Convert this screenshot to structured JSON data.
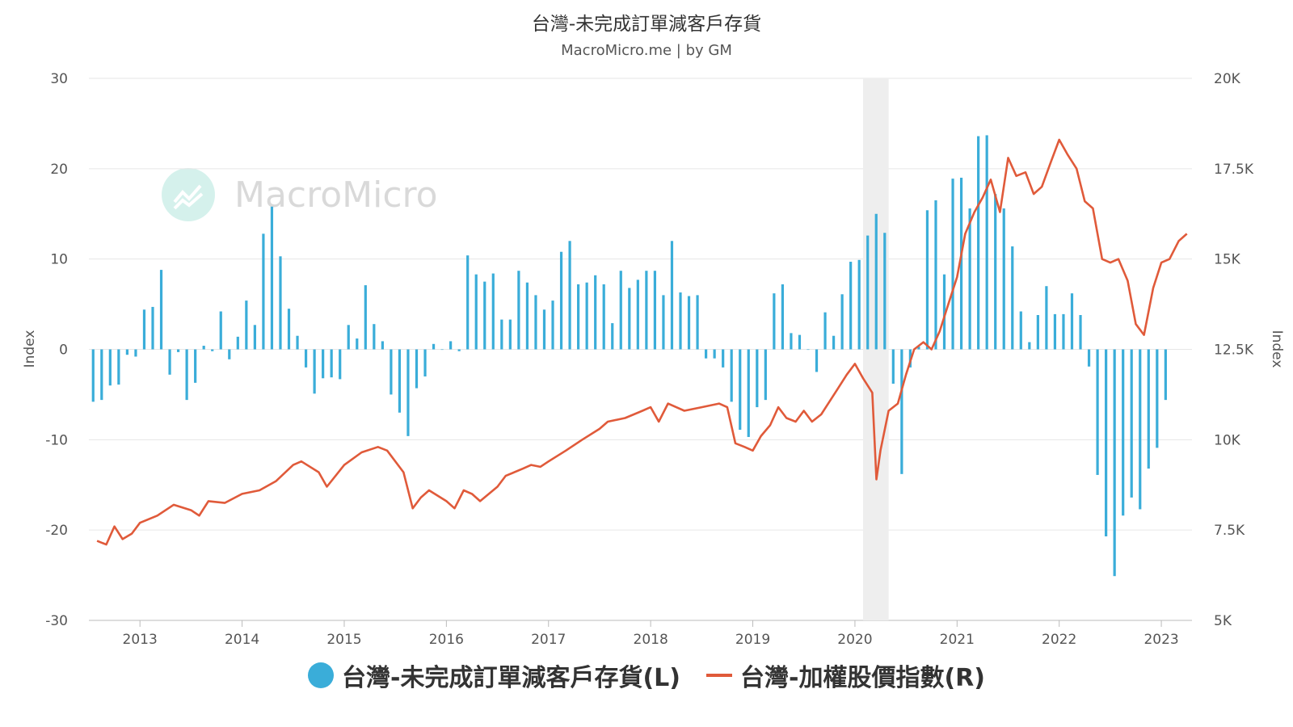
{
  "chart_data": {
    "type": "bar+line",
    "title": "台灣-未完成訂單減客戶存貨",
    "subtitle": "MacroMicro.me | by GM",
    "watermark": "MacroMicro",
    "ylabel_left": "Index",
    "ylabel_right": "Index",
    "ylim_left": [
      -30,
      30
    ],
    "ylim_right": [
      5000,
      20000
    ],
    "left_ticks": [
      "30",
      "20",
      "10",
      "0",
      "-10",
      "-20",
      "-30"
    ],
    "right_ticks": [
      "20K",
      "17.5K",
      "15K",
      "12.5K",
      "10K",
      "7.5K",
      "5K"
    ],
    "x_ticks": [
      "2013",
      "2014",
      "2015",
      "2016",
      "2017",
      "2018",
      "2019",
      "2020",
      "2021",
      "2022",
      "2023"
    ],
    "x_range": [
      2012.5,
      2023.3
    ],
    "recession_band": [
      2020.08,
      2020.33
    ],
    "bar_series": {
      "name": "台灣-未完成訂單減客戶存貨(L)",
      "color": "#3aadd9",
      "start": [
        2012,
        7
      ],
      "values": [
        -5.8,
        -5.6,
        -4.0,
        -3.9,
        -0.6,
        -0.8,
        4.4,
        4.7,
        8.8,
        -2.8,
        -0.3,
        -5.6,
        -3.7,
        0.4,
        -0.2,
        4.2,
        -1.1,
        1.4,
        5.4,
        2.7,
        12.8,
        15.8,
        10.3,
        4.5,
        1.5,
        -2.0,
        -4.9,
        -3.2,
        -3.1,
        -3.3,
        2.7,
        1.2,
        7.1,
        2.8,
        0.9,
        -5.0,
        -7.0,
        -9.6,
        -4.3,
        -3.0,
        0.6,
        0.0,
        0.9,
        -0.2,
        10.4,
        8.3,
        7.5,
        8.4,
        3.3,
        3.3,
        8.7,
        7.4,
        6.0,
        4.4,
        5.4,
        10.8,
        12.0,
        7.2,
        7.4,
        8.2,
        7.2,
        2.9,
        8.7,
        6.8,
        7.7,
        8.7,
        8.7,
        6.0,
        12.0,
        6.3,
        5.9,
        6.0,
        -1.0,
        -1.0,
        -2.0,
        -5.8,
        -8.9,
        -9.7,
        -6.4,
        -5.6,
        6.2,
        7.2,
        1.8,
        1.6,
        0.0,
        -2.5,
        4.1,
        1.5,
        6.1,
        9.7,
        9.9,
        12.6,
        15.0,
        12.9,
        -3.8,
        -13.8,
        -2.0,
        0.3,
        15.4,
        16.5,
        8.3,
        18.9,
        19.0,
        15.6,
        23.6,
        23.7,
        17.2,
        15.6,
        11.4,
        4.2,
        0.8,
        3.8,
        7.0,
        3.9,
        3.9,
        6.2,
        3.8,
        -1.9,
        -13.9,
        -20.7,
        -25.1,
        -18.4,
        -16.4,
        -17.7,
        -13.2,
        -10.9,
        -5.6
      ]
    },
    "line_series": {
      "name": "台灣-加權股價指數(R)",
      "color": "#e05a3a",
      "points": [
        [
          2012.58,
          7200
        ],
        [
          2012.67,
          7100
        ],
        [
          2012.75,
          7600
        ],
        [
          2012.83,
          7250
        ],
        [
          2012.92,
          7400
        ],
        [
          2013.0,
          7700
        ],
        [
          2013.17,
          7900
        ],
        [
          2013.33,
          8200
        ],
        [
          2013.5,
          8050
        ],
        [
          2013.58,
          7900
        ],
        [
          2013.67,
          8300
        ],
        [
          2013.83,
          8250
        ],
        [
          2014.0,
          8500
        ],
        [
          2014.17,
          8600
        ],
        [
          2014.33,
          8850
        ],
        [
          2014.5,
          9300
        ],
        [
          2014.58,
          9400
        ],
        [
          2014.75,
          9100
        ],
        [
          2014.83,
          8700
        ],
        [
          2015.0,
          9300
        ],
        [
          2015.17,
          9650
        ],
        [
          2015.33,
          9800
        ],
        [
          2015.42,
          9700
        ],
        [
          2015.58,
          9100
        ],
        [
          2015.67,
          8100
        ],
        [
          2015.75,
          8400
        ],
        [
          2015.83,
          8600
        ],
        [
          2016.0,
          8300
        ],
        [
          2016.08,
          8100
        ],
        [
          2016.17,
          8600
        ],
        [
          2016.25,
          8500
        ],
        [
          2016.33,
          8300
        ],
        [
          2016.5,
          8700
        ],
        [
          2016.58,
          9000
        ],
        [
          2016.75,
          9200
        ],
        [
          2016.83,
          9300
        ],
        [
          2016.92,
          9250
        ],
        [
          2017.0,
          9400
        ],
        [
          2017.17,
          9700
        ],
        [
          2017.33,
          10000
        ],
        [
          2017.5,
          10300
        ],
        [
          2017.58,
          10500
        ],
        [
          2017.75,
          10600
        ],
        [
          2017.92,
          10800
        ],
        [
          2018.0,
          10900
        ],
        [
          2018.08,
          10500
        ],
        [
          2018.17,
          11000
        ],
        [
          2018.33,
          10800
        ],
        [
          2018.5,
          10900
        ],
        [
          2018.67,
          11000
        ],
        [
          2018.75,
          10900
        ],
        [
          2018.83,
          9900
        ],
        [
          2018.92,
          9800
        ],
        [
          2019.0,
          9700
        ],
        [
          2019.08,
          10100
        ],
        [
          2019.17,
          10400
        ],
        [
          2019.25,
          10900
        ],
        [
          2019.33,
          10600
        ],
        [
          2019.42,
          10500
        ],
        [
          2019.5,
          10800
        ],
        [
          2019.58,
          10500
        ],
        [
          2019.67,
          10700
        ],
        [
          2019.83,
          11400
        ],
        [
          2019.92,
          11800
        ],
        [
          2020.0,
          12100
        ],
        [
          2020.08,
          11700
        ],
        [
          2020.17,
          11300
        ],
        [
          2020.21,
          8900
        ],
        [
          2020.25,
          9700
        ],
        [
          2020.33,
          10800
        ],
        [
          2020.42,
          11000
        ],
        [
          2020.5,
          11800
        ],
        [
          2020.58,
          12500
        ],
        [
          2020.67,
          12700
        ],
        [
          2020.75,
          12500
        ],
        [
          2020.83,
          13000
        ],
        [
          2020.92,
          13800
        ],
        [
          2021.0,
          14500
        ],
        [
          2021.08,
          15700
        ],
        [
          2021.17,
          16300
        ],
        [
          2021.25,
          16700
        ],
        [
          2021.33,
          17200
        ],
        [
          2021.42,
          16300
        ],
        [
          2021.5,
          17800
        ],
        [
          2021.58,
          17300
        ],
        [
          2021.67,
          17400
        ],
        [
          2021.75,
          16800
        ],
        [
          2021.83,
          17000
        ],
        [
          2021.92,
          17700
        ],
        [
          2022.0,
          18300
        ],
        [
          2022.08,
          17900
        ],
        [
          2022.17,
          17500
        ],
        [
          2022.25,
          16600
        ],
        [
          2022.33,
          16400
        ],
        [
          2022.42,
          15000
        ],
        [
          2022.5,
          14900
        ],
        [
          2022.58,
          15000
        ],
        [
          2022.67,
          14400
        ],
        [
          2022.75,
          13200
        ],
        [
          2022.83,
          12900
        ],
        [
          2022.92,
          14200
        ],
        [
          2023.0,
          14900
        ],
        [
          2023.08,
          15000
        ],
        [
          2023.17,
          15500
        ],
        [
          2023.25,
          15700
        ]
      ]
    }
  }
}
